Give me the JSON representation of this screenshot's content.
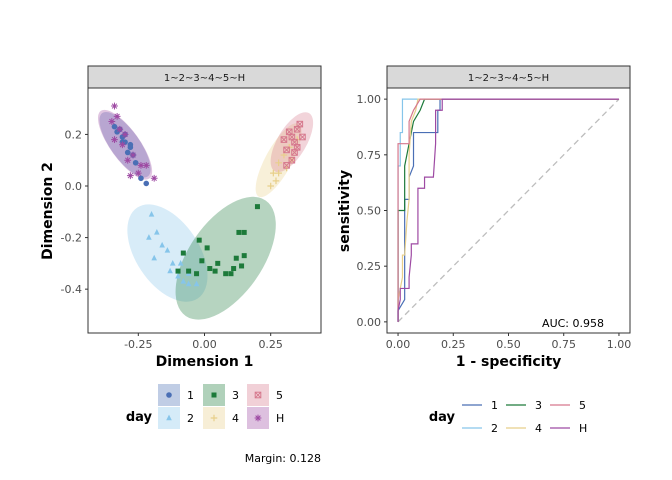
{
  "colors": {
    "1": "#4a6fb5",
    "2": "#86c5ea",
    "3": "#1d7a3a",
    "4": "#e8cf8a",
    "5": "#d6788d",
    "H": "#9e4aa3",
    "diagonal": "#bdbdbd",
    "strip_fill": "#d9d9d9",
    "panel_border": "#333333"
  },
  "chart_data": [
    {
      "type": "scatter",
      "strip_label": "1~2~3~4~5~H",
      "xlabel": "Dimension 1",
      "ylabel": "Dimension 2",
      "xlim": [
        -0.44,
        0.44
      ],
      "ylim": [
        -0.57,
        0.38
      ],
      "x_ticks": [
        -0.25,
        0.0,
        0.25
      ],
      "x_tick_labels": [
        "-0.25",
        "0.00",
        "0.25"
      ],
      "y_ticks": [
        0.2,
        0.0,
        -0.2,
        -0.4
      ],
      "y_tick_labels": [
        "0.2",
        "0.0",
        "-0.2",
        "-0.4"
      ],
      "grid": false,
      "legend": {
        "title": "day",
        "placement": "bottom",
        "entries": [
          {
            "key": "1",
            "marker": "circle"
          },
          {
            "key": "2",
            "marker": "triangle"
          },
          {
            "key": "3",
            "marker": "square"
          },
          {
            "key": "4",
            "marker": "plus"
          },
          {
            "key": "5",
            "marker": "boxcross"
          },
          {
            "key": "H",
            "marker": "asterisk"
          }
        ]
      },
      "ellipses": [
        {
          "group": "1",
          "cx": -0.3,
          "cy": 0.16,
          "rx": 0.15,
          "ry": 0.055,
          "angle_deg": -55
        },
        {
          "group": "H",
          "cx": -0.3,
          "cy": 0.16,
          "rx": 0.16,
          "ry": 0.056,
          "angle_deg": -55
        },
        {
          "group": "2",
          "cx": -0.14,
          "cy": -0.26,
          "rx": 0.21,
          "ry": 0.12,
          "angle_deg": -57
        },
        {
          "group": "3",
          "cx": 0.08,
          "cy": -0.28,
          "rx": 0.27,
          "ry": 0.14,
          "angle_deg": 56
        },
        {
          "group": "4",
          "cx": 0.28,
          "cy": 0.1,
          "rx": 0.16,
          "ry": 0.05,
          "angle_deg": 62
        },
        {
          "group": "5",
          "cx": 0.33,
          "cy": 0.17,
          "rx": 0.13,
          "ry": 0.055,
          "angle_deg": 60
        }
      ],
      "series": [
        {
          "name": "1",
          "marker": "circle",
          "points": [
            [
              -0.33,
              0.21
            ],
            [
              -0.31,
              0.19
            ],
            [
              -0.3,
              0.17
            ],
            [
              -0.28,
              0.15
            ],
            [
              -0.32,
              0.22
            ],
            [
              -0.29,
              0.13
            ],
            [
              -0.27,
              0.12
            ],
            [
              -0.3,
              0.2
            ],
            [
              -0.26,
              0.09
            ],
            [
              -0.24,
              0.03
            ],
            [
              -0.22,
              0.01
            ],
            [
              -0.34,
              0.23
            ],
            [
              -0.31,
              0.17
            ],
            [
              -0.28,
              0.16
            ]
          ]
        },
        {
          "name": "2",
          "marker": "triangle",
          "points": [
            [
              -0.2,
              -0.11
            ],
            [
              -0.18,
              -0.18
            ],
            [
              -0.21,
              -0.2
            ],
            [
              -0.16,
              -0.23
            ],
            [
              -0.14,
              -0.25
            ],
            [
              -0.19,
              -0.28
            ],
            [
              -0.12,
              -0.3
            ],
            [
              -0.13,
              -0.33
            ],
            [
              -0.1,
              -0.35
            ],
            [
              -0.08,
              -0.37
            ],
            [
              -0.06,
              -0.38
            ],
            [
              -0.03,
              -0.38
            ],
            [
              -0.06,
              -0.34
            ],
            [
              -0.09,
              -0.3
            ]
          ]
        },
        {
          "name": "3",
          "marker": "square",
          "points": [
            [
              -0.02,
              -0.21
            ],
            [
              0.01,
              -0.24
            ],
            [
              -0.08,
              -0.26
            ],
            [
              0.12,
              -0.28
            ],
            [
              0.15,
              -0.27
            ],
            [
              0.2,
              -0.08
            ],
            [
              0.13,
              -0.18
            ],
            [
              0.15,
              -0.18
            ],
            [
              0.14,
              -0.31
            ],
            [
              0.1,
              -0.34
            ],
            [
              0.04,
              -0.33
            ],
            [
              0.05,
              -0.3
            ],
            [
              0.11,
              -0.32
            ],
            [
              -0.01,
              -0.29
            ],
            [
              -0.06,
              -0.33
            ],
            [
              -0.03,
              -0.34
            ],
            [
              -0.1,
              -0.33
            ],
            [
              0.02,
              -0.32
            ],
            [
              0.08,
              -0.34
            ]
          ]
        },
        {
          "name": "4",
          "marker": "plus",
          "points": [
            [
              0.26,
              0.05
            ],
            [
              0.27,
              0.02
            ],
            [
              0.31,
              0.07
            ],
            [
              0.28,
              0.09
            ],
            [
              0.33,
              0.1
            ],
            [
              0.3,
              0.12
            ],
            [
              0.25,
              0.0
            ],
            [
              0.32,
              0.15
            ],
            [
              0.28,
              0.05
            ],
            [
              0.35,
              0.18
            ]
          ]
        },
        {
          "name": "5",
          "marker": "boxcross",
          "points": [
            [
              0.35,
              0.22
            ],
            [
              0.33,
              0.19
            ],
            [
              0.32,
              0.21
            ],
            [
              0.34,
              0.17
            ],
            [
              0.31,
              0.14
            ],
            [
              0.3,
              0.18
            ],
            [
              0.37,
              0.19
            ],
            [
              0.35,
              0.15
            ],
            [
              0.33,
              0.1
            ],
            [
              0.36,
              0.24
            ],
            [
              0.31,
              0.08
            ],
            [
              0.34,
              0.13
            ]
          ]
        },
        {
          "name": "H",
          "marker": "asterisk",
          "points": [
            [
              -0.34,
              0.31
            ],
            [
              -0.33,
              0.27
            ],
            [
              -0.35,
              0.25
            ],
            [
              -0.32,
              0.22
            ],
            [
              -0.3,
              0.2
            ],
            [
              -0.34,
              0.18
            ],
            [
              -0.27,
              0.12
            ],
            [
              -0.24,
              0.08
            ],
            [
              -0.28,
              0.04
            ],
            [
              -0.22,
              0.08
            ],
            [
              -0.19,
              0.03
            ],
            [
              -0.25,
              0.05
            ],
            [
              -0.31,
              0.16
            ],
            [
              -0.29,
              0.1
            ]
          ]
        }
      ],
      "annotation": "Margin: 0.128"
    },
    {
      "type": "line",
      "strip_label": "1~2~3~4~5~H",
      "xlabel": "1 - specificity",
      "ylabel": "sensitivity",
      "xlim": [
        -0.05,
        1.05
      ],
      "ylim": [
        -0.05,
        1.05
      ],
      "x_ticks": [
        0.0,
        0.25,
        0.5,
        0.75,
        1.0
      ],
      "x_tick_labels": [
        "0.00",
        "0.25",
        "0.50",
        "0.75",
        "1.00"
      ],
      "y_ticks": [
        1.0,
        0.75,
        0.5,
        0.25,
        0.0
      ],
      "y_tick_labels": [
        "1.00",
        "0.75",
        "0.50",
        "0.25",
        "0.00"
      ],
      "grid": false,
      "diagonal": true,
      "legend": {
        "title": "day",
        "placement": "bottom",
        "entries": [
          {
            "key": "1"
          },
          {
            "key": "2"
          },
          {
            "key": "3"
          },
          {
            "key": "4"
          },
          {
            "key": "5"
          },
          {
            "key": "H"
          }
        ]
      },
      "series": [
        {
          "name": "1",
          "points": [
            [
              0,
              0
            ],
            [
              0,
              0.05
            ],
            [
              0.03,
              0.1
            ],
            [
              0.03,
              0.55
            ],
            [
              0.05,
              0.55
            ],
            [
              0.05,
              0.65
            ],
            [
              0.07,
              0.7
            ],
            [
              0.07,
              0.85
            ],
            [
              0.18,
              0.85
            ],
            [
              0.18,
              0.95
            ],
            [
              0.19,
              0.95
            ],
            [
              0.19,
              1.0
            ],
            [
              1,
              1
            ]
          ]
        },
        {
          "name": "2",
          "points": [
            [
              0,
              0
            ],
            [
              0,
              0.7
            ],
            [
              0.01,
              0.7
            ],
            [
              0.01,
              0.85
            ],
            [
              0.02,
              0.85
            ],
            [
              0.02,
              1.0
            ],
            [
              1,
              1
            ]
          ]
        },
        {
          "name": "3",
          "points": [
            [
              0,
              0
            ],
            [
              0,
              0.5
            ],
            [
              0.03,
              0.5
            ],
            [
              0.03,
              0.7
            ],
            [
              0.05,
              0.8
            ],
            [
              0.07,
              0.9
            ],
            [
              0.1,
              0.95
            ],
            [
              0.12,
              1.0
            ],
            [
              1,
              1
            ]
          ]
        },
        {
          "name": "4",
          "points": [
            [
              0,
              0
            ],
            [
              0,
              0.1
            ],
            [
              0.02,
              0.2
            ],
            [
              0.02,
              0.3
            ],
            [
              0.03,
              0.3
            ],
            [
              0.04,
              0.45
            ],
            [
              0.05,
              0.55
            ],
            [
              0.05,
              0.75
            ],
            [
              0.06,
              0.9
            ],
            [
              0.08,
              0.95
            ],
            [
              0.09,
              1.0
            ],
            [
              1,
              1
            ]
          ]
        },
        {
          "name": "5",
          "points": [
            [
              0,
              0
            ],
            [
              0,
              0.8
            ],
            [
              0.05,
              0.8
            ],
            [
              0.05,
              0.9
            ],
            [
              0.07,
              0.95
            ],
            [
              0.1,
              1.0
            ],
            [
              1,
              1
            ]
          ]
        },
        {
          "name": "H",
          "points": [
            [
              0,
              0
            ],
            [
              0,
              0.05
            ],
            [
              0.01,
              0.1
            ],
            [
              0.01,
              0.15
            ],
            [
              0.05,
              0.15
            ],
            [
              0.05,
              0.2
            ],
            [
              0.06,
              0.3
            ],
            [
              0.06,
              0.35
            ],
            [
              0.09,
              0.35
            ],
            [
              0.09,
              0.6
            ],
            [
              0.12,
              0.6
            ],
            [
              0.12,
              0.65
            ],
            [
              0.16,
              0.65
            ],
            [
              0.17,
              0.8
            ],
            [
              0.17,
              0.95
            ],
            [
              0.2,
              0.95
            ],
            [
              0.2,
              1.0
            ],
            [
              1,
              1
            ]
          ]
        }
      ],
      "annotation": "AUC: 0.958"
    }
  ]
}
